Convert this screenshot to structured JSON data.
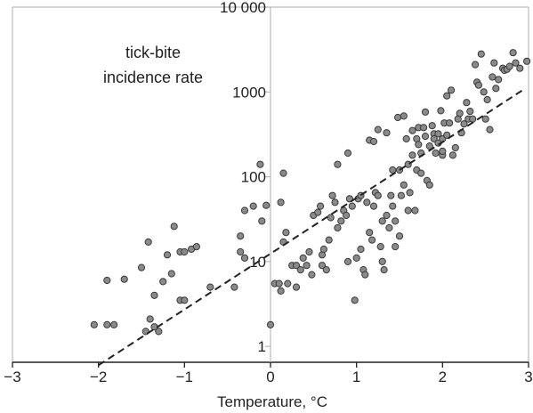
{
  "chart_data": {
    "type": "scatter",
    "title": "",
    "xlabel": "Temperature, °C",
    "ylabel": "",
    "annotation": [
      "tick-bite",
      "incidence rate"
    ],
    "xlim": [
      -3,
      3
    ],
    "ylim": [
      0.65,
      10000
    ],
    "y_scale": "log",
    "grid": false,
    "x_ticks": [
      -3,
      -2,
      -1,
      0,
      1,
      2,
      3
    ],
    "x_tick_labels": [
      "−3",
      "−2",
      "−1",
      "0",
      "1",
      "2",
      "3"
    ],
    "y_ticks": [
      1,
      10,
      100,
      1000,
      10000
    ],
    "y_tick_labels": [
      "1",
      "10",
      "100",
      "1000",
      "10 000"
    ],
    "colors": {
      "points": "#8a8a8a",
      "point_edge": "#3a3a3a",
      "trend": "#222222",
      "axes": "#bbbbbb"
    },
    "trend_line": {
      "style": "dashed",
      "points": [
        [
          -2.0,
          0.6
        ],
        [
          2.95,
          1080
        ]
      ]
    },
    "series": [
      {
        "points": [
          [
            -2.05,
            1.8
          ],
          [
            -1.9,
            1.8
          ],
          [
            -1.82,
            1.8
          ],
          [
            -1.45,
            1.5
          ],
          [
            -1.3,
            1.5
          ],
          [
            -1.4,
            2.1
          ],
          [
            -1.35,
            1.7
          ],
          [
            -1.9,
            6
          ],
          [
            -1.7,
            6.2
          ],
          [
            -1.5,
            8.5
          ],
          [
            -1.42,
            17
          ],
          [
            -1.35,
            4
          ],
          [
            -1.25,
            5.8
          ],
          [
            -1.2,
            12
          ],
          [
            -1.15,
            7.2
          ],
          [
            -1.05,
            3.5
          ],
          [
            -1.0,
            3.5
          ],
          [
            -1.12,
            26
          ],
          [
            -1.05,
            13
          ],
          [
            -1.0,
            13
          ],
          [
            -0.92,
            14
          ],
          [
            -0.86,
            15
          ],
          [
            -0.7,
            5
          ],
          [
            -0.42,
            5
          ],
          [
            -0.35,
            13
          ],
          [
            -0.3,
            11
          ],
          [
            -0.35,
            20
          ],
          [
            -0.3,
            40
          ],
          [
            -0.2,
            45
          ],
          [
            -0.1,
            30
          ],
          [
            -0.12,
            140
          ],
          [
            -0.05,
            46
          ],
          [
            0.0,
            1.8
          ],
          [
            0.05,
            5.5
          ],
          [
            0.1,
            5.5
          ],
          [
            0.12,
            4.5
          ],
          [
            0.15,
            17
          ],
          [
            0.18,
            22
          ],
          [
            0.12,
            50
          ],
          [
            0.15,
            110
          ],
          [
            0.2,
            5.5
          ],
          [
            0.25,
            9
          ],
          [
            0.3,
            5
          ],
          [
            0.3,
            9
          ],
          [
            0.35,
            8
          ],
          [
            0.38,
            11
          ],
          [
            0.42,
            9
          ],
          [
            0.45,
            13
          ],
          [
            0.48,
            7
          ],
          [
            0.5,
            35
          ],
          [
            0.55,
            38
          ],
          [
            0.58,
            45
          ],
          [
            0.6,
            12
          ],
          [
            0.6,
            9
          ],
          [
            0.62,
            14
          ],
          [
            0.65,
            8
          ],
          [
            0.68,
            18
          ],
          [
            0.7,
            33
          ],
          [
            0.72,
            60
          ],
          [
            0.75,
            50
          ],
          [
            0.78,
            140
          ],
          [
            0.78,
            25
          ],
          [
            0.82,
            30
          ],
          [
            0.85,
            40
          ],
          [
            0.88,
            35
          ],
          [
            0.9,
            190
          ],
          [
            0.9,
            10
          ],
          [
            0.92,
            55
          ],
          [
            0.95,
            45
          ],
          [
            0.98,
            3.5
          ],
          [
            1.0,
            11
          ],
          [
            1.02,
            55
          ],
          [
            1.05,
            60
          ],
          [
            1.05,
            14
          ],
          [
            1.08,
            8
          ],
          [
            1.1,
            7
          ],
          [
            1.12,
            50
          ],
          [
            1.15,
            270
          ],
          [
            1.15,
            22
          ],
          [
            1.18,
            18
          ],
          [
            1.2,
            45
          ],
          [
            1.2,
            260
          ],
          [
            1.22,
            65
          ],
          [
            1.25,
            60
          ],
          [
            1.25,
            360
          ],
          [
            1.28,
            15
          ],
          [
            1.3,
            30
          ],
          [
            1.3,
            10
          ],
          [
            1.32,
            8
          ],
          [
            1.35,
            330
          ],
          [
            1.35,
            35
          ],
          [
            1.38,
            25
          ],
          [
            1.4,
            60
          ],
          [
            1.42,
            120
          ],
          [
            1.42,
            45
          ],
          [
            1.45,
            30
          ],
          [
            1.45,
            15
          ],
          [
            1.48,
            500
          ],
          [
            1.5,
            20
          ],
          [
            1.5,
            120
          ],
          [
            1.52,
            60
          ],
          [
            1.55,
            520
          ],
          [
            1.55,
            80
          ],
          [
            1.58,
            280
          ],
          [
            1.6,
            40
          ],
          [
            1.6,
            140
          ],
          [
            1.62,
            65
          ],
          [
            1.65,
            350
          ],
          [
            1.65,
            180
          ],
          [
            1.68,
            40
          ],
          [
            1.7,
            120
          ],
          [
            1.7,
            280
          ],
          [
            1.72,
            380
          ],
          [
            1.72,
            240
          ],
          [
            1.75,
            190
          ],
          [
            1.75,
            110
          ],
          [
            1.78,
            380
          ],
          [
            1.8,
            300
          ],
          [
            1.8,
            580
          ],
          [
            1.82,
            90
          ],
          [
            1.85,
            80
          ],
          [
            1.85,
            230
          ],
          [
            1.88,
            400
          ],
          [
            1.9,
            320
          ],
          [
            1.9,
            280
          ],
          [
            1.92,
            190
          ],
          [
            1.95,
            250
          ],
          [
            1.95,
            320
          ],
          [
            1.98,
            600
          ],
          [
            2.0,
            180
          ],
          [
            2.0,
            200
          ],
          [
            2.0,
            280
          ],
          [
            2.02,
            430
          ],
          [
            2.05,
            900
          ],
          [
            2.05,
            310
          ],
          [
            2.08,
            430
          ],
          [
            2.1,
            1050
          ],
          [
            2.12,
            180
          ],
          [
            2.15,
            220
          ],
          [
            2.18,
            480
          ],
          [
            2.2,
            560
          ],
          [
            2.22,
            330
          ],
          [
            2.25,
            420
          ],
          [
            2.28,
            750
          ],
          [
            2.3,
            480
          ],
          [
            2.32,
            590
          ],
          [
            2.35,
            480
          ],
          [
            2.38,
            2100
          ],
          [
            2.4,
            1300
          ],
          [
            2.42,
            1200
          ],
          [
            2.45,
            2800
          ],
          [
            2.48,
            1000
          ],
          [
            2.5,
            480
          ],
          [
            2.52,
            810
          ],
          [
            2.55,
            360
          ],
          [
            2.58,
            1500
          ],
          [
            2.6,
            2200
          ],
          [
            2.62,
            1100
          ],
          [
            2.65,
            1400
          ],
          [
            2.7,
            1900
          ],
          [
            2.72,
            1800
          ],
          [
            2.75,
            1850
          ],
          [
            2.78,
            2000
          ],
          [
            2.82,
            2900
          ],
          [
            2.85,
            2200
          ],
          [
            2.9,
            1900
          ],
          [
            2.98,
            2300
          ]
        ]
      }
    ]
  }
}
